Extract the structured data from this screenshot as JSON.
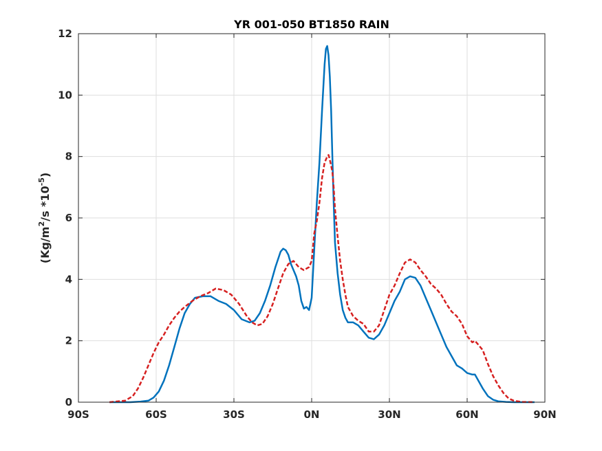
{
  "chart_data": {
    "type": "line",
    "title": "YR 001-050 BT1850 RAIN",
    "xlabel": "",
    "ylabel": {
      "prefix": "(Kg/m",
      "sup1": "2",
      "middle": "/s   *10",
      "sup2": "-5",
      "suffix": ")"
    },
    "xlim": [
      -90,
      90
    ],
    "ylim": [
      0,
      12
    ],
    "x_ticks": [
      -90,
      -60,
      -30,
      0,
      30,
      60,
      90
    ],
    "x_tick_labels": [
      "90S",
      "60S",
      "30S",
      "0N",
      "30N",
      "60N",
      "90N"
    ],
    "y_ticks": [
      0,
      2,
      4,
      6,
      8,
      10,
      12
    ],
    "y_tick_labels": [
      "0",
      "2",
      "4",
      "6",
      "8",
      "10",
      "12"
    ],
    "grid": true,
    "legend": "none",
    "series": [
      {
        "color": "#0072BD",
        "line_style": "solid",
        "x": [
          -78,
          -70,
          -66,
          -63,
          -61,
          -59,
          -57,
          -55,
          -53,
          -51,
          -49,
          -47,
          -45,
          -42,
          -39,
          -36,
          -33,
          -30,
          -27,
          -24,
          -22,
          -20,
          -18,
          -16,
          -14,
          -12,
          -11,
          -10,
          -9,
          -8,
          -7,
          -6,
          -5,
          -4,
          -3,
          -2,
          -1,
          0,
          1,
          2,
          3,
          4,
          5,
          5.5,
          6,
          6.5,
          7,
          7.5,
          8,
          8.5,
          9,
          10,
          11,
          12,
          13,
          14,
          16,
          18,
          20,
          22,
          24,
          26,
          28,
          30,
          32,
          34,
          36,
          38,
          40,
          42,
          44,
          46,
          48,
          50,
          52,
          54,
          56,
          58,
          60,
          62,
          63,
          64,
          66,
          68,
          70,
          72,
          75,
          78,
          86
        ],
        "values": [
          0,
          0,
          0.02,
          0.05,
          0.15,
          0.35,
          0.7,
          1.2,
          1.8,
          2.4,
          2.9,
          3.2,
          3.4,
          3.45,
          3.45,
          3.3,
          3.2,
          3.0,
          2.7,
          2.6,
          2.65,
          2.9,
          3.3,
          3.8,
          4.4,
          4.9,
          5.0,
          4.95,
          4.8,
          4.5,
          4.3,
          4.1,
          3.8,
          3.3,
          3.05,
          3.1,
          3.0,
          3.4,
          5.0,
          6.5,
          7.8,
          9.5,
          11.0,
          11.5,
          11.6,
          11.3,
          10.6,
          9.5,
          8.0,
          6.5,
          5.2,
          4.2,
          3.5,
          3.0,
          2.75,
          2.6,
          2.6,
          2.5,
          2.3,
          2.1,
          2.05,
          2.2,
          2.5,
          2.9,
          3.3,
          3.6,
          4.0,
          4.1,
          4.05,
          3.8,
          3.4,
          3.0,
          2.6,
          2.2,
          1.8,
          1.5,
          1.2,
          1.1,
          0.95,
          0.9,
          0.9,
          0.75,
          0.45,
          0.2,
          0.08,
          0.03,
          0.01,
          0,
          0
        ]
      },
      {
        "color": "#D62020",
        "line_style": "dashed",
        "x": [
          -78,
          -72,
          -69,
          -67,
          -65,
          -63,
          -61,
          -59,
          -57,
          -55,
          -53,
          -51,
          -49,
          -46,
          -43,
          -40,
          -37,
          -34,
          -31,
          -28,
          -25,
          -23,
          -21,
          -19,
          -17,
          -15,
          -13,
          -11,
          -9,
          -7,
          -5,
          -3,
          -1,
          0,
          1,
          2,
          3,
          4,
          5,
          6,
          6.5,
          7,
          7.5,
          8,
          8.5,
          9,
          10,
          11,
          12,
          13,
          14,
          16,
          18,
          20,
          22,
          24,
          26,
          28,
          30,
          32,
          34,
          36,
          38,
          40,
          42,
          44,
          46,
          48,
          50,
          52,
          54,
          56,
          58,
          60,
          62,
          63,
          64,
          66,
          68,
          70,
          72,
          74,
          76,
          78,
          81,
          86
        ],
        "values": [
          0,
          0.05,
          0.2,
          0.45,
          0.8,
          1.2,
          1.6,
          1.95,
          2.2,
          2.5,
          2.75,
          2.95,
          3.1,
          3.3,
          3.45,
          3.55,
          3.7,
          3.65,
          3.5,
          3.2,
          2.8,
          2.6,
          2.5,
          2.55,
          2.8,
          3.2,
          3.7,
          4.2,
          4.5,
          4.6,
          4.4,
          4.3,
          4.4,
          4.6,
          5.5,
          5.9,
          6.5,
          7.3,
          7.8,
          8.0,
          8.05,
          7.9,
          7.7,
          7.5,
          7.0,
          6.3,
          5.4,
          4.6,
          4.0,
          3.5,
          3.1,
          2.8,
          2.65,
          2.55,
          2.3,
          2.3,
          2.5,
          3.0,
          3.5,
          3.8,
          4.2,
          4.55,
          4.65,
          4.55,
          4.3,
          4.1,
          3.85,
          3.7,
          3.5,
          3.2,
          2.95,
          2.8,
          2.55,
          2.15,
          1.95,
          2.0,
          1.9,
          1.7,
          1.25,
          0.85,
          0.55,
          0.3,
          0.12,
          0.05,
          0.01,
          0
        ]
      }
    ]
  }
}
